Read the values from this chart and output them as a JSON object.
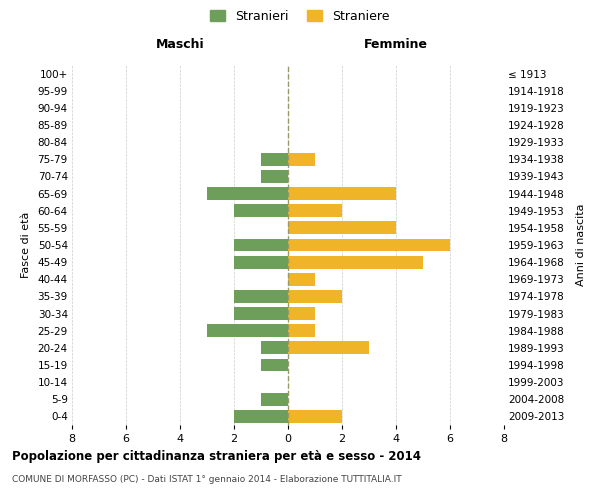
{
  "age_groups": [
    "0-4",
    "5-9",
    "10-14",
    "15-19",
    "20-24",
    "25-29",
    "30-34",
    "35-39",
    "40-44",
    "45-49",
    "50-54",
    "55-59",
    "60-64",
    "65-69",
    "70-74",
    "75-79",
    "80-84",
    "85-89",
    "90-94",
    "95-99",
    "100+"
  ],
  "birth_years": [
    "2009-2013",
    "2004-2008",
    "1999-2003",
    "1994-1998",
    "1989-1993",
    "1984-1988",
    "1979-1983",
    "1974-1978",
    "1969-1973",
    "1964-1968",
    "1959-1963",
    "1954-1958",
    "1949-1953",
    "1944-1948",
    "1939-1943",
    "1934-1938",
    "1929-1933",
    "1924-1928",
    "1919-1923",
    "1914-1918",
    "≤ 1913"
  ],
  "maschi": [
    2,
    1,
    0,
    1,
    1,
    3,
    2,
    2,
    0,
    2,
    2,
    0,
    2,
    3,
    1,
    1,
    0,
    0,
    0,
    0,
    0
  ],
  "femmine": [
    2,
    0,
    0,
    0,
    3,
    1,
    1,
    2,
    1,
    5,
    6,
    4,
    2,
    4,
    0,
    1,
    0,
    0,
    0,
    0,
    0
  ],
  "maschi_color": "#6d9e5a",
  "femmine_color": "#f0b429",
  "background_color": "#ffffff",
  "grid_color": "#cccccc",
  "zero_line_color": "#999966",
  "title": "Popolazione per cittadinanza straniera per età e sesso - 2014",
  "subtitle": "COMUNE DI MORFASSO (PC) - Dati ISTAT 1° gennaio 2014 - Elaborazione TUTTITALIA.IT",
  "xlabel_left": "Maschi",
  "xlabel_right": "Femmine",
  "ylabel_left": "Fasce di età",
  "ylabel_right": "Anni di nascita",
  "legend_stranieri": "Stranieri",
  "legend_straniere": "Straniere",
  "xlim": 8
}
